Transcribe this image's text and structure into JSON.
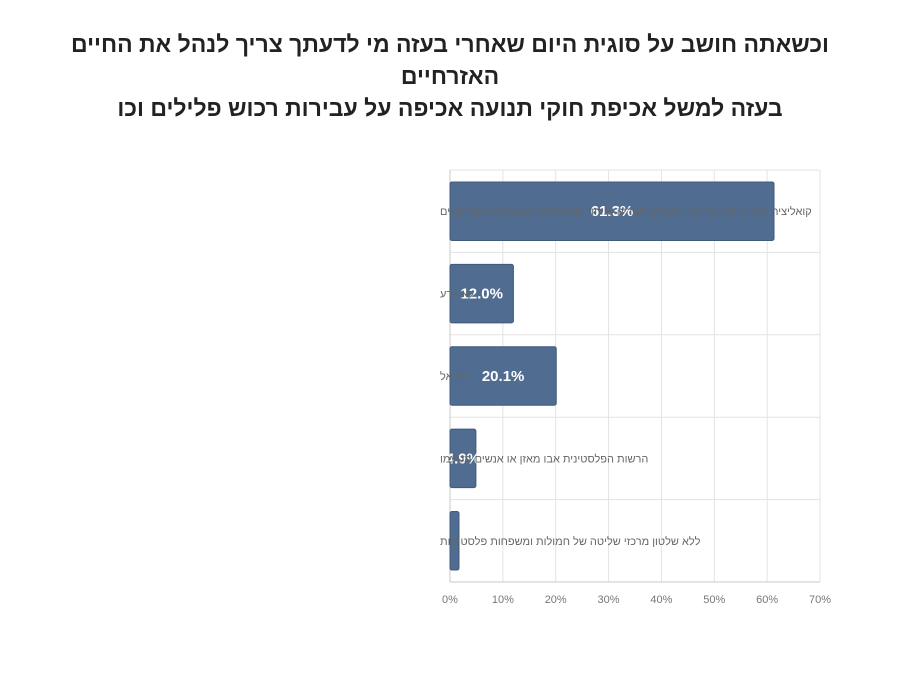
{
  "title_lines": [
    "וכשאתה חושב על סוגית היום שאחרי בעזה  מי לדעתך צריך לנהל את החיים האזרחיים",
    "בעזה למשל אכיפת חוקי תנועה אכיפה על עבירות רכוש פלילים וכו"
  ],
  "colors": {
    "bar": "#506d91",
    "bar_border": "#3f5a7c",
    "grid": "#e3e3e3",
    "axis": "#c8c8c8"
  },
  "chart_data": {
    "type": "bar",
    "orientation": "horizontal",
    "categories": [
      "קואליציה אזורית של מדינות המפרץ סעודיה ואיחוד האמירויות בהובלת האמריקאים",
      "לא יודע",
      "ישראל",
      "הרשות הפלסטינית אבו מאזן או אנשים מטעמו",
      "ללא שלטון מרכזי שליטה של חמולות ומשפחות פלסטיניות"
    ],
    "values": [
      61.3,
      12.0,
      20.1,
      4.9,
      1.7
    ],
    "data_labels": [
      "61.3%",
      "12.0%",
      "20.1%",
      "4.9%",
      ""
    ],
    "xlim": [
      0,
      70
    ],
    "x_ticks": [
      "0%",
      "10%",
      "20%",
      "30%",
      "40%",
      "50%",
      "60%",
      "70%"
    ],
    "grid": true
  }
}
